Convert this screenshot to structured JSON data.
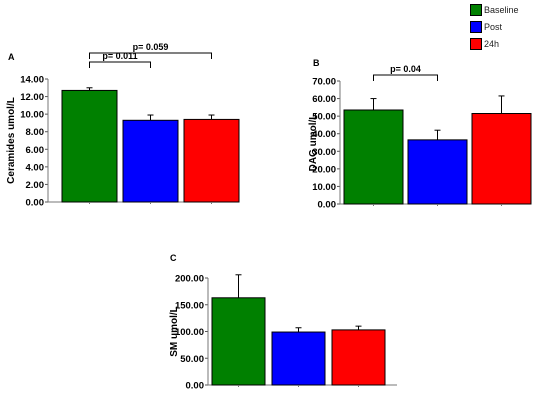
{
  "legend": [
    {
      "name": "Baseline",
      "color": "#008000"
    },
    {
      "name": "Post",
      "color": "#0000ff"
    },
    {
      "name": "24h",
      "color": "#ff0000"
    }
  ],
  "chart_data": [
    {
      "type": "bar",
      "panel_label": "A",
      "ylabel": "Ceramides umol/L",
      "ylim": [
        0,
        14
      ],
      "yticks": [
        "0.00",
        "2.00",
        "4.00",
        "6.00",
        "8.00",
        "10.00",
        "12.00",
        "14.00"
      ],
      "categories": [
        "Baseline",
        "Post",
        "24h"
      ],
      "values": [
        12.7,
        9.3,
        9.4
      ],
      "errors": [
        0.3,
        0.6,
        0.5
      ],
      "colors": [
        "#008000",
        "#0000ff",
        "#ff0000"
      ],
      "annotations": [
        {
          "text": "p= 0.011",
          "from": 0,
          "to": 1
        },
        {
          "text": "p= 0.059",
          "from": 0,
          "to": 2
        }
      ]
    },
    {
      "type": "bar",
      "panel_label": "B",
      "ylabel": "DAG umol/L",
      "ylim": [
        0,
        70
      ],
      "yticks": [
        "0.00",
        "10.00",
        "20.00",
        "30.00",
        "40.00",
        "50.00",
        "60.00",
        "70.00"
      ],
      "categories": [
        "Baseline",
        "Post",
        "24h"
      ],
      "values": [
        53.5,
        36.5,
        51.5
      ],
      "errors": [
        6.5,
        5.5,
        10.0
      ],
      "colors": [
        "#008000",
        "#0000ff",
        "#ff0000"
      ],
      "annotations": [
        {
          "text": "p= 0.04",
          "from": 0,
          "to": 1
        }
      ]
    },
    {
      "type": "bar",
      "panel_label": "C",
      "ylabel": "SM umol/L",
      "ylim": [
        0,
        200
      ],
      "yticks": [
        "0.00",
        "50.00",
        "100.00",
        "150.00",
        "200.00"
      ],
      "categories": [
        "Baseline",
        "Post",
        "24h"
      ],
      "values": [
        163,
        99,
        103
      ],
      "errors": [
        43,
        8,
        7
      ],
      "colors": [
        "#008000",
        "#0000ff",
        "#ff0000"
      ],
      "annotations": []
    }
  ]
}
